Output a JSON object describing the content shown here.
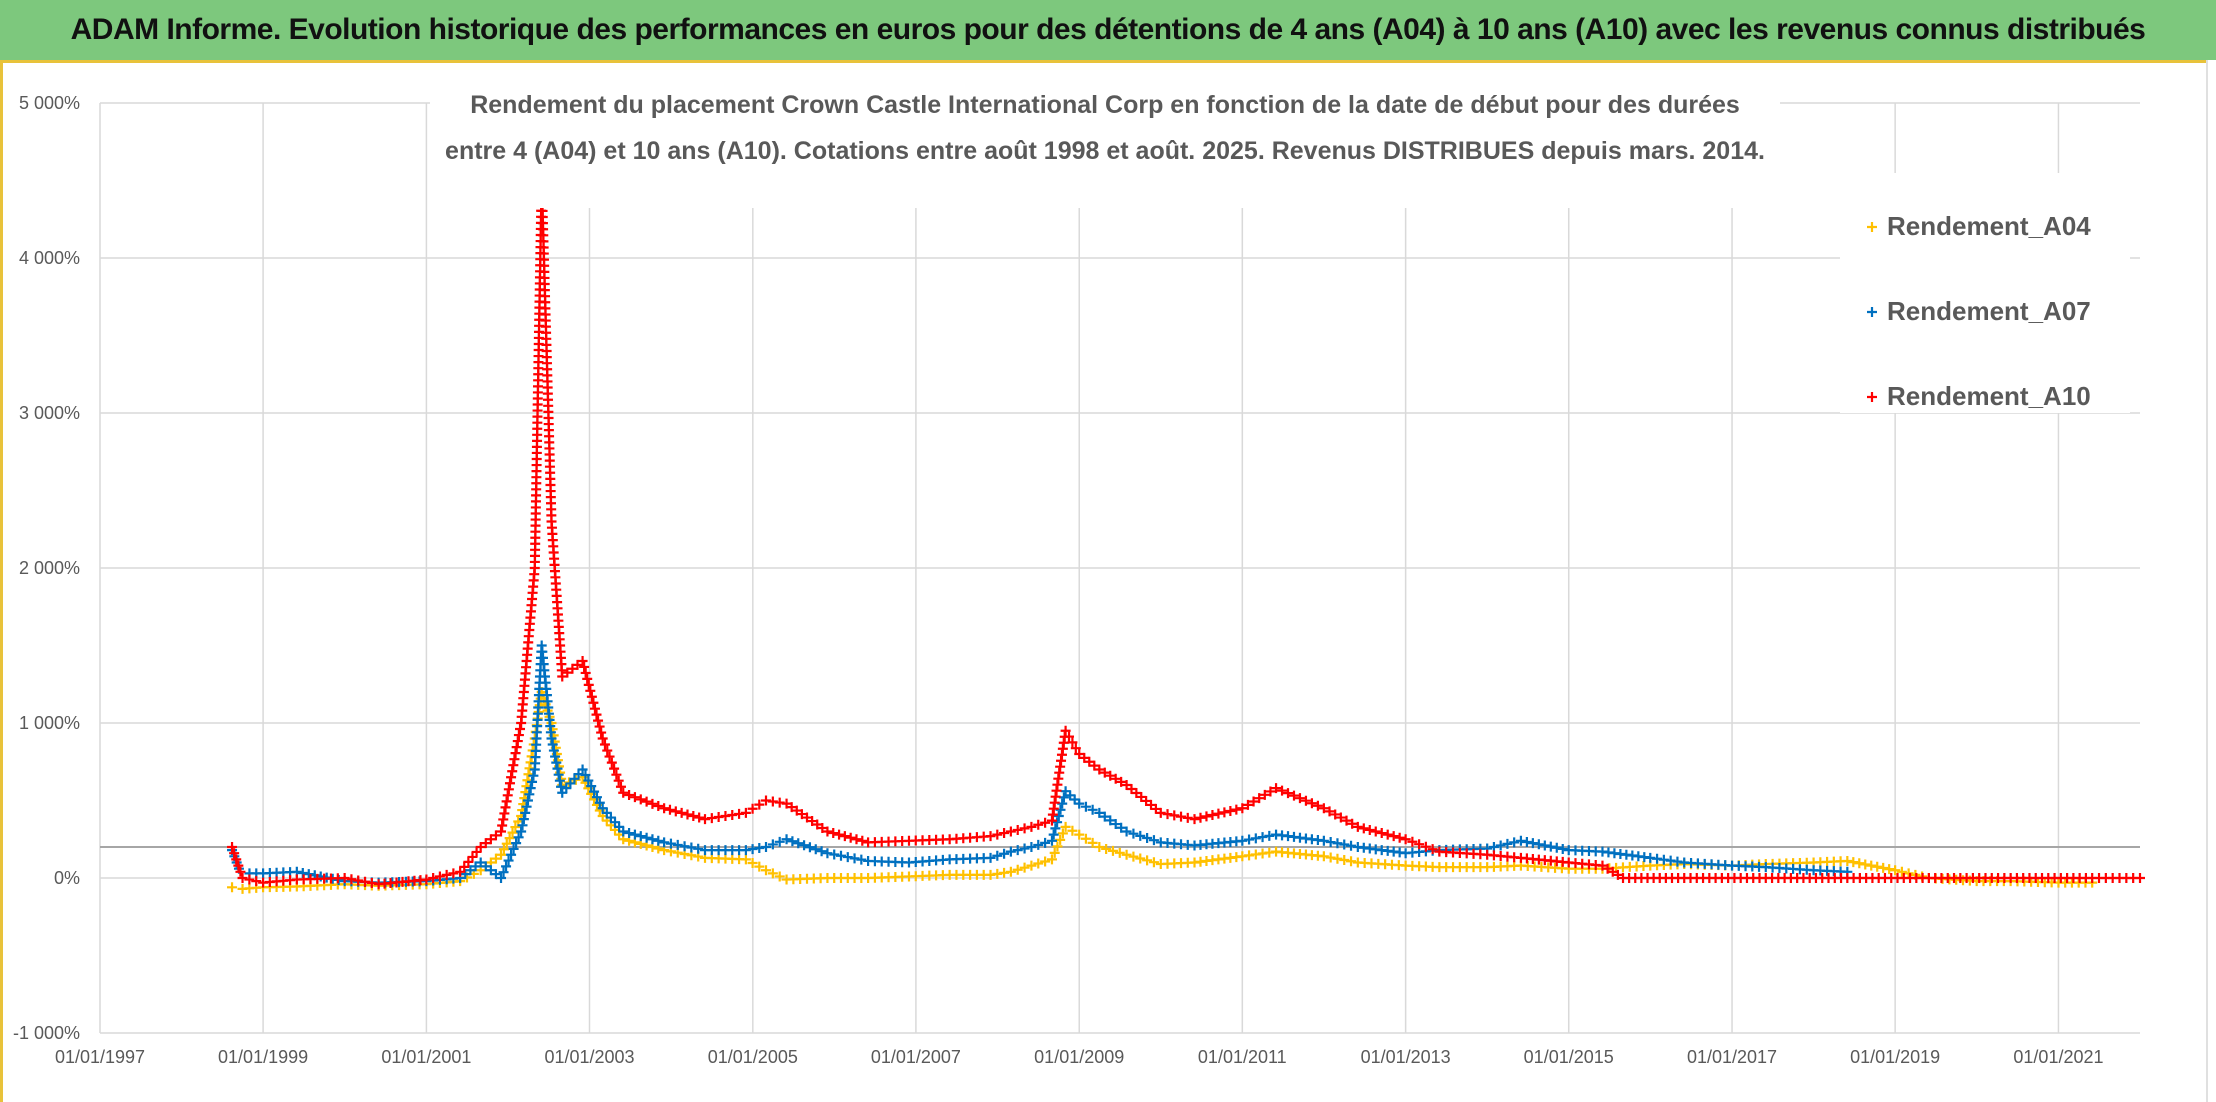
{
  "banner": {
    "title": "ADAM Informe. Evolution historique des performances en euros pour des détentions de 4 ans (A04) à 10 ans (A10) avec les revenus connus distribués"
  },
  "colors": {
    "banner_bg": "#7dc87d",
    "frame": "#e8c23a",
    "A04": "#ffc000",
    "A07": "#0070c0",
    "A10": "#ff0000",
    "grid": "#d9d9d9",
    "text": "#595959"
  },
  "chart_data": {
    "type": "scatter",
    "title_lines": [
      "Rendement du placement Crown Castle International Corp en fonction de la date de début pour des durées",
      "entre 4 (A04) et 10 ans (A10). Cotations entre août 1998 et août. 2025. Revenus DISTRIBUES depuis mars. 2014."
    ],
    "marker": "+",
    "x_ticks": [
      "01/01/1997",
      "01/01/1999",
      "01/01/2001",
      "01/01/2003",
      "01/01/2005",
      "01/01/2007",
      "01/01/2009",
      "01/01/2011",
      "01/01/2013",
      "01/01/2015",
      "01/01/2017",
      "01/01/2019",
      "01/01/2021"
    ],
    "x_range": [
      "1997-01-01",
      "2022-01-01"
    ],
    "y_ticks": [
      "-1 000%",
      "0%",
      "1 000%",
      "2 000%",
      "3 000%",
      "4 000%",
      "5 000%"
    ],
    "ylim": [
      -1000,
      5000
    ],
    "reference_line_y": 200,
    "legend_position": "right",
    "series": [
      {
        "name": "Rendement_A04",
        "points": [
          [
            "1998-08-15",
            -60
          ],
          [
            "1998-10-01",
            -70
          ],
          [
            "1999-01-01",
            -60
          ],
          [
            "1999-06-01",
            -55
          ],
          [
            "2000-01-01",
            -40
          ],
          [
            "2000-06-01",
            -50
          ],
          [
            "2001-01-01",
            -40
          ],
          [
            "2001-06-01",
            -20
          ],
          [
            "2001-09-01",
            50
          ],
          [
            "2001-12-01",
            150
          ],
          [
            "2002-03-01",
            400
          ],
          [
            "2002-05-01",
            900
          ],
          [
            "2002-06-01",
            1200
          ],
          [
            "2002-07-15",
            1000
          ],
          [
            "2002-09-01",
            600
          ],
          [
            "2002-12-01",
            650
          ],
          [
            "2003-03-01",
            400
          ],
          [
            "2003-06-01",
            250
          ],
          [
            "2003-12-01",
            180
          ],
          [
            "2004-06-01",
            130
          ],
          [
            "2004-12-01",
            120
          ],
          [
            "2005-03-01",
            50
          ],
          [
            "2005-06-01",
            -10
          ],
          [
            "2005-12-01",
            0
          ],
          [
            "2006-06-01",
            0
          ],
          [
            "2006-12-01",
            10
          ],
          [
            "2007-06-01",
            20
          ],
          [
            "2007-12-01",
            20
          ],
          [
            "2008-03-01",
            40
          ],
          [
            "2008-06-01",
            80
          ],
          [
            "2008-09-01",
            120
          ],
          [
            "2008-11-01",
            330
          ],
          [
            "2009-01-01",
            280
          ],
          [
            "2009-04-01",
            200
          ],
          [
            "2009-08-01",
            150
          ],
          [
            "2010-01-01",
            90
          ],
          [
            "2010-06-01",
            100
          ],
          [
            "2011-01-01",
            140
          ],
          [
            "2011-06-01",
            170
          ],
          [
            "2012-01-01",
            140
          ],
          [
            "2012-06-01",
            100
          ],
          [
            "2013-01-01",
            80
          ],
          [
            "2013-06-01",
            70
          ],
          [
            "2014-01-01",
            70
          ],
          [
            "2014-06-01",
            80
          ],
          [
            "2015-01-01",
            60
          ],
          [
            "2015-06-01",
            60
          ],
          [
            "2016-01-01",
            80
          ],
          [
            "2016-06-01",
            90
          ],
          [
            "2017-01-01",
            80
          ],
          [
            "2017-06-01",
            90
          ],
          [
            "2018-01-01",
            100
          ],
          [
            "2018-06-01",
            110
          ],
          [
            "2019-01-01",
            50
          ],
          [
            "2019-06-01",
            0
          ],
          [
            "2020-01-01",
            -20
          ],
          [
            "2020-06-01",
            -20
          ],
          [
            "2021-01-01",
            -30
          ],
          [
            "2021-06-01",
            -30
          ]
        ]
      },
      {
        "name": "Rendement_A07",
        "points": [
          [
            "1998-08-15",
            180
          ],
          [
            "1998-09-15",
            60
          ],
          [
            "1998-11-01",
            30
          ],
          [
            "1999-01-01",
            30
          ],
          [
            "1999-06-01",
            40
          ],
          [
            "2000-01-01",
            -20
          ],
          [
            "2000-06-01",
            -30
          ],
          [
            "2001-01-01",
            -20
          ],
          [
            "2001-06-01",
            0
          ],
          [
            "2001-09-01",
            100
          ],
          [
            "2001-12-01",
            0
          ],
          [
            "2002-03-01",
            300
          ],
          [
            "2002-05-01",
            700
          ],
          [
            "2002-06-01",
            1500
          ],
          [
            "2002-07-15",
            900
          ],
          [
            "2002-09-01",
            550
          ],
          [
            "2002-12-01",
            700
          ],
          [
            "2003-03-01",
            450
          ],
          [
            "2003-06-01",
            300
          ],
          [
            "2003-12-01",
            230
          ],
          [
            "2004-06-01",
            180
          ],
          [
            "2004-12-01",
            180
          ],
          [
            "2005-03-01",
            200
          ],
          [
            "2005-06-01",
            250
          ],
          [
            "2005-12-01",
            160
          ],
          [
            "2006-06-01",
            110
          ],
          [
            "2006-12-01",
            100
          ],
          [
            "2007-06-01",
            120
          ],
          [
            "2007-12-01",
            130
          ],
          [
            "2008-03-01",
            170
          ],
          [
            "2008-06-01",
            200
          ],
          [
            "2008-09-01",
            240
          ],
          [
            "2008-11-01",
            560
          ],
          [
            "2009-01-01",
            480
          ],
          [
            "2009-04-01",
            420
          ],
          [
            "2009-08-01",
            300
          ],
          [
            "2010-01-01",
            230
          ],
          [
            "2010-06-01",
            210
          ],
          [
            "2011-01-01",
            240
          ],
          [
            "2011-06-01",
            280
          ],
          [
            "2012-01-01",
            240
          ],
          [
            "2012-06-01",
            200
          ],
          [
            "2013-01-01",
            160
          ],
          [
            "2013-06-01",
            180
          ],
          [
            "2014-01-01",
            190
          ],
          [
            "2014-06-01",
            240
          ],
          [
            "2015-01-01",
            180
          ],
          [
            "2015-06-01",
            170
          ],
          [
            "2016-01-01",
            130
          ],
          [
            "2016-06-01",
            100
          ],
          [
            "2017-01-01",
            80
          ],
          [
            "2017-06-01",
            70
          ],
          [
            "2018-01-01",
            50
          ],
          [
            "2018-06-01",
            40
          ]
        ]
      },
      {
        "name": "Rendement_A10",
        "points": [
          [
            "1998-08-15",
            200
          ],
          [
            "1998-10-01",
            0
          ],
          [
            "1999-01-01",
            -30
          ],
          [
            "1999-06-01",
            -10
          ],
          [
            "2000-01-01",
            0
          ],
          [
            "2000-06-01",
            -40
          ],
          [
            "2001-01-01",
            -10
          ],
          [
            "2001-06-01",
            40
          ],
          [
            "2001-09-01",
            200
          ],
          [
            "2001-12-01",
            300
          ],
          [
            "2002-03-01",
            1000
          ],
          [
            "2002-05-01",
            2000
          ],
          [
            "2002-06-01",
            4500
          ],
          [
            "2002-07-15",
            2300
          ],
          [
            "2002-09-01",
            1300
          ],
          [
            "2002-12-01",
            1400
          ],
          [
            "2003-03-01",
            900
          ],
          [
            "2003-06-01",
            550
          ],
          [
            "2003-12-01",
            450
          ],
          [
            "2004-06-01",
            380
          ],
          [
            "2004-12-01",
            420
          ],
          [
            "2005-03-01",
            500
          ],
          [
            "2005-06-01",
            480
          ],
          [
            "2005-12-01",
            300
          ],
          [
            "2006-06-01",
            230
          ],
          [
            "2006-12-01",
            240
          ],
          [
            "2007-06-01",
            250
          ],
          [
            "2007-12-01",
            270
          ],
          [
            "2008-03-01",
            300
          ],
          [
            "2008-06-01",
            330
          ],
          [
            "2008-09-01",
            370
          ],
          [
            "2008-11-01",
            950
          ],
          [
            "2009-01-01",
            800
          ],
          [
            "2009-04-01",
            700
          ],
          [
            "2009-08-01",
            600
          ],
          [
            "2010-01-01",
            420
          ],
          [
            "2010-06-01",
            380
          ],
          [
            "2011-01-01",
            450
          ],
          [
            "2011-06-01",
            580
          ],
          [
            "2012-01-01",
            450
          ],
          [
            "2012-06-01",
            330
          ],
          [
            "2013-01-01",
            250
          ],
          [
            "2013-06-01",
            170
          ],
          [
            "2014-01-01",
            150
          ],
          [
            "2014-06-01",
            130
          ],
          [
            "2015-01-01",
            100
          ],
          [
            "2015-06-01",
            80
          ],
          [
            "2015-09-01",
            0
          ],
          [
            "2016-06-01",
            0
          ],
          [
            "2017-06-01",
            0
          ],
          [
            "2018-06-01",
            0
          ],
          [
            "2019-06-01",
            0
          ],
          [
            "2020-06-01",
            0
          ],
          [
            "2021-06-01",
            0
          ],
          [
            "2022-01-01",
            0
          ]
        ]
      }
    ]
  }
}
